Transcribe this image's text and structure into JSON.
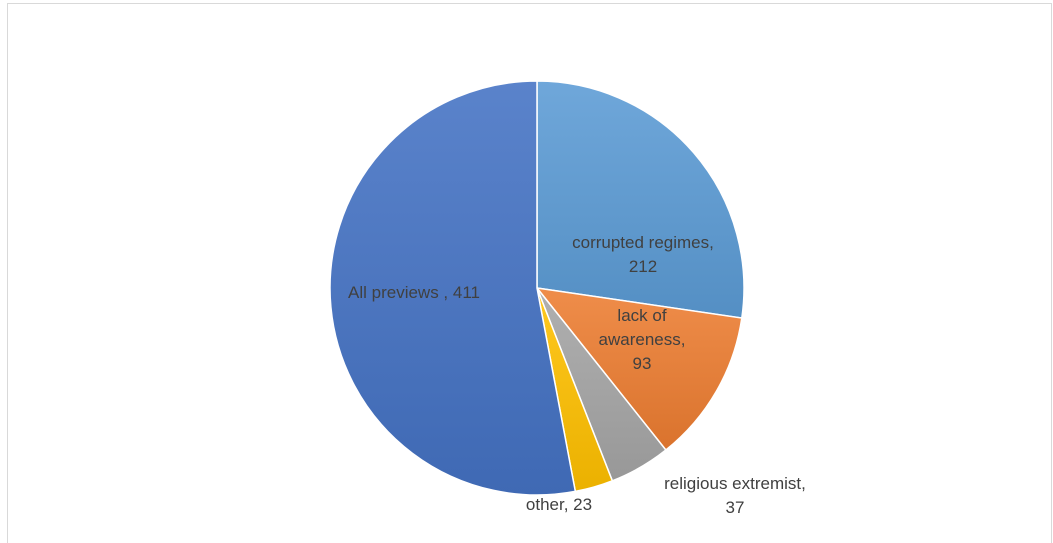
{
  "chart_data": {
    "type": "pie",
    "title": "",
    "slices": [
      {
        "label_lines": [
          "corrupted regimes,",
          "212"
        ],
        "value": 212,
        "color": "#5b9bd5"
      },
      {
        "label_lines": [
          "lack of",
          "awareness,",
          "93"
        ],
        "value": 93,
        "color": "#ed7d31"
      },
      {
        "label_lines": [
          "religious extremist,",
          "37"
        ],
        "value": 37,
        "color": "#a5a5a5"
      },
      {
        "label_lines": [
          "other, 23"
        ],
        "value": 23,
        "color": "#ffc000"
      },
      {
        "label_lines": [
          "All previews , 411"
        ],
        "value": 411,
        "color": "#4472c4"
      }
    ]
  }
}
